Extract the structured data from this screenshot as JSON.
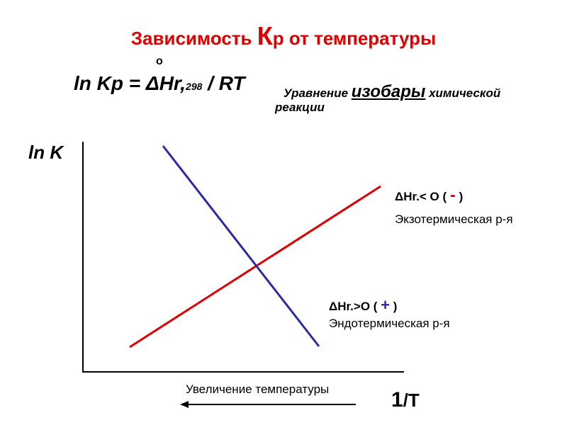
{
  "title": {
    "prefix": "Зависимость ",
    "big": "К",
    "suffix": "р от температуры"
  },
  "equation": {
    "degree": "o",
    "main": "ln Kp = ΔHr,",
    "sub": "298",
    "tail": " / RT",
    "caption_pre": "Уравнение ",
    "caption_emph": "изобары",
    "caption_post": " химической",
    "caption_line2": "реакции"
  },
  "axes": {
    "y_label": "ln K",
    "x_label_big": "1",
    "x_label_rest": "/T",
    "arrow_caption": "Увеличение температуры"
  },
  "exothermic": {
    "formula": "ΔHr.< O   ( ",
    "sign": "-",
    "close": " )",
    "name": "Экзотермическая р-я",
    "color": "#e00000"
  },
  "endothermic": {
    "formula": "ΔHr.>O    ( ",
    "sign": "+",
    "close": " )",
    "name": "Эндотермическая р-я",
    "color": "#2a2aa6"
  }
}
